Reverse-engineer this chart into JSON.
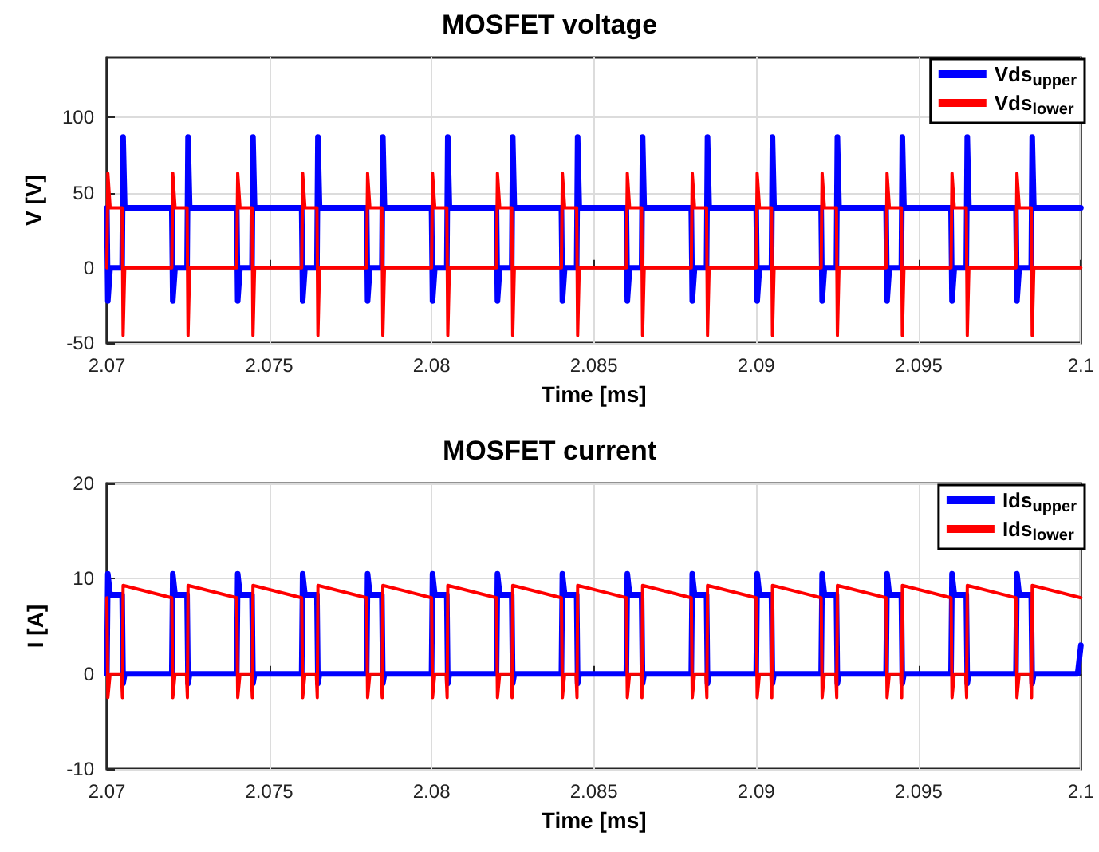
{
  "chart_data": [
    {
      "type": "line",
      "title": "MOSFET voltage",
      "xlabel": "Time [ms]",
      "ylabel": "V [V]",
      "xlim": [
        2.07,
        2.1
      ],
      "xticks": [
        2.07,
        2.075,
        2.08,
        2.085,
        2.09,
        2.095,
        2.1
      ],
      "ylim": [
        -50,
        140
      ],
      "yticks": [
        -50,
        0,
        50,
        100
      ],
      "grid": true,
      "legend": "top right",
      "marker": "none",
      "line_style": "solid",
      "series": [
        {
          "name": "Vds$_{upper}$",
          "color": "#0000ff",
          "x": [
            2.07,
            2.07003,
            2.0701,
            2.07047,
            2.0705,
            2.07055,
            2.072,
            2.07203,
            2.0721,
            2.07247,
            2.0725,
            2.07255,
            2.074,
            2.07403,
            2.0741,
            2.07447,
            2.0745,
            2.07455,
            2.076,
            2.07603,
            2.0761,
            2.07647,
            2.0765,
            2.07655,
            2.078,
            2.07803,
            2.0781,
            2.07847,
            2.0785,
            2.07855,
            2.08,
            2.08003,
            2.0801,
            2.08047,
            2.0805,
            2.08055,
            2.082,
            2.08203,
            2.0821,
            2.08247,
            2.0825,
            2.08255,
            2.084,
            2.08403,
            2.0841,
            2.08447,
            2.0845,
            2.08455,
            2.086,
            2.08603,
            2.0861,
            2.08647,
            2.0865,
            2.08655,
            2.088,
            2.08803,
            2.0881,
            2.08847,
            2.0885,
            2.08855,
            2.09,
            2.09003,
            2.0901,
            2.09047,
            2.0905,
            2.09055,
            2.092,
            2.09203,
            2.0921,
            2.09247,
            2.0925,
            2.09255,
            2.094,
            2.09403,
            2.0941,
            2.09447,
            2.0945,
            2.09455,
            2.096,
            2.09603,
            2.0961,
            2.09647,
            2.0965,
            2.09655,
            2.098,
            2.09803,
            2.0981,
            2.09847,
            2.0985,
            2.09855,
            2.1
          ],
          "values": [
            40,
            -22,
            0,
            0,
            87,
            40,
            40,
            -22,
            0,
            0,
            87,
            40,
            40,
            -22,
            0,
            0,
            87,
            40,
            40,
            -22,
            0,
            0,
            87,
            40,
            40,
            -22,
            0,
            0,
            87,
            40,
            40,
            -22,
            0,
            0,
            87,
            40,
            40,
            -22,
            0,
            0,
            87,
            40,
            40,
            -22,
            0,
            0,
            87,
            40,
            40,
            -22,
            0,
            0,
            87,
            40,
            40,
            -22,
            0,
            0,
            87,
            40,
            40,
            -22,
            0,
            0,
            87,
            40,
            40,
            -22,
            0,
            0,
            87,
            40,
            40,
            -22,
            0,
            0,
            87,
            40,
            40,
            -22,
            0,
            0,
            87,
            40,
            40,
            -22,
            0,
            0,
            87,
            40,
            40
          ]
        },
        {
          "name": "Vds$_{lower}$",
          "color": "#ff0000",
          "x": [
            2.07,
            2.07003,
            2.0701,
            2.07047,
            2.0705,
            2.07055,
            2.072,
            2.07203,
            2.0721,
            2.07247,
            2.0725,
            2.07255,
            2.074,
            2.07403,
            2.0741,
            2.07447,
            2.0745,
            2.07455,
            2.076,
            2.07603,
            2.0761,
            2.07647,
            2.0765,
            2.07655,
            2.078,
            2.07803,
            2.0781,
            2.07847,
            2.0785,
            2.07855,
            2.08,
            2.08003,
            2.0801,
            2.08047,
            2.0805,
            2.08055,
            2.082,
            2.08203,
            2.0821,
            2.08247,
            2.0825,
            2.08255,
            2.084,
            2.08403,
            2.0841,
            2.08447,
            2.0845,
            2.08455,
            2.086,
            2.08603,
            2.0861,
            2.08647,
            2.0865,
            2.08655,
            2.088,
            2.08803,
            2.0881,
            2.08847,
            2.0885,
            2.08855,
            2.09,
            2.09003,
            2.0901,
            2.09047,
            2.0905,
            2.09055,
            2.092,
            2.09203,
            2.0921,
            2.09247,
            2.0925,
            2.09255,
            2.094,
            2.09403,
            2.0941,
            2.09447,
            2.0945,
            2.09455,
            2.096,
            2.09603,
            2.0961,
            2.09647,
            2.0965,
            2.09655,
            2.098,
            2.09803,
            2.0981,
            2.09847,
            2.0985,
            2.09855,
            2.1
          ],
          "values": [
            0,
            63,
            40,
            40,
            -45,
            0,
            0,
            63,
            40,
            40,
            -45,
            0,
            0,
            63,
            40,
            40,
            -45,
            0,
            0,
            63,
            40,
            40,
            -45,
            0,
            0,
            63,
            40,
            40,
            -45,
            0,
            0,
            63,
            40,
            40,
            -45,
            0,
            0,
            63,
            40,
            40,
            -45,
            0,
            0,
            63,
            40,
            40,
            -45,
            0,
            0,
            63,
            40,
            40,
            -45,
            0,
            0,
            63,
            40,
            40,
            -45,
            0,
            0,
            63,
            40,
            40,
            -45,
            0,
            0,
            63,
            40,
            40,
            -45,
            0,
            0,
            63,
            40,
            40,
            -45,
            0,
            0,
            63,
            40,
            40,
            -45,
            0,
            0,
            63,
            40,
            40,
            -45,
            0,
            0
          ]
        }
      ]
    },
    {
      "type": "line",
      "title": "MOSFET current",
      "xlabel": "Time [ms]",
      "ylabel": "I [A]",
      "xlim": [
        2.07,
        2.1
      ],
      "xticks": [
        2.07,
        2.075,
        2.08,
        2.085,
        2.09,
        2.095,
        2.1
      ],
      "ylim": [
        -10,
        20
      ],
      "yticks": [
        -10,
        0,
        10,
        20
      ],
      "grid": true,
      "legend": "top right",
      "marker": "none",
      "line_style": "solid",
      "series": [
        {
          "name": "Ids$_{upper}$",
          "color": "#0000ff",
          "x": [
            2.07,
            2.07003,
            2.0701,
            2.07047,
            2.0705,
            2.07055,
            2.072,
            2.07203,
            2.0721,
            2.07247,
            2.0725,
            2.07255,
            2.074,
            2.07403,
            2.0741,
            2.07447,
            2.0745,
            2.07455,
            2.076,
            2.07603,
            2.0761,
            2.07647,
            2.0765,
            2.07655,
            2.078,
            2.07803,
            2.0781,
            2.07847,
            2.0785,
            2.07855,
            2.08,
            2.08003,
            2.0801,
            2.08047,
            2.0805,
            2.08055,
            2.082,
            2.08203,
            2.0821,
            2.08247,
            2.0825,
            2.08255,
            2.084,
            2.08403,
            2.0841,
            2.08447,
            2.0845,
            2.08455,
            2.086,
            2.08603,
            2.0861,
            2.08647,
            2.0865,
            2.08655,
            2.088,
            2.08803,
            2.0881,
            2.08847,
            2.0885,
            2.08855,
            2.09,
            2.09003,
            2.0901,
            2.09047,
            2.0905,
            2.09055,
            2.092,
            2.09203,
            2.0921,
            2.09247,
            2.0925,
            2.09255,
            2.094,
            2.09403,
            2.0941,
            2.09447,
            2.0945,
            2.09455,
            2.096,
            2.09603,
            2.0961,
            2.09647,
            2.0965,
            2.09655,
            2.098,
            2.09803,
            2.0981,
            2.09847,
            2.0985,
            2.09855,
            2.0999,
            2.1
          ],
          "values": [
            0,
            10.5,
            8.3,
            8.3,
            -1,
            0,
            0,
            10.5,
            8.3,
            8.3,
            -1,
            0,
            0,
            10.5,
            8.3,
            8.3,
            -1,
            0,
            0,
            10.5,
            8.3,
            8.3,
            -1,
            0,
            0,
            10.5,
            8.3,
            8.3,
            -1,
            0,
            0,
            10.5,
            8.3,
            8.3,
            -1,
            0,
            0,
            10.5,
            8.3,
            8.3,
            -1,
            0,
            0,
            10.5,
            8.3,
            8.3,
            -1,
            0,
            0,
            10.5,
            8.3,
            8.3,
            -1,
            0,
            0,
            10.5,
            8.3,
            8.3,
            -1,
            0,
            0,
            10.5,
            8.3,
            8.3,
            -1,
            0,
            0,
            10.5,
            8.3,
            8.3,
            -1,
            0,
            0,
            10.5,
            8.3,
            8.3,
            -1,
            0,
            0,
            10.5,
            8.3,
            8.3,
            -1,
            0,
            0,
            10.5,
            8.3,
            8.3,
            -1,
            0,
            0,
            3
          ]
        },
        {
          "name": "Ids$_{lower}$",
          "color": "#ff0000",
          "x": [
            2.07,
            2.07003,
            2.0701,
            2.07045,
            2.07048,
            2.0705,
            2.072,
            2.07203,
            2.0721,
            2.07245,
            2.07248,
            2.0725,
            2.074,
            2.07403,
            2.0741,
            2.07445,
            2.07448,
            2.0745,
            2.076,
            2.07603,
            2.0761,
            2.07645,
            2.07648,
            2.0765,
            2.078,
            2.07803,
            2.0781,
            2.07845,
            2.07848,
            2.0785,
            2.08,
            2.08003,
            2.0801,
            2.08045,
            2.08048,
            2.0805,
            2.082,
            2.08203,
            2.0821,
            2.08245,
            2.08248,
            2.0825,
            2.084,
            2.08403,
            2.0841,
            2.08445,
            2.08448,
            2.0845,
            2.086,
            2.08603,
            2.0861,
            2.08645,
            2.08648,
            2.0865,
            2.088,
            2.08803,
            2.0881,
            2.08845,
            2.08848,
            2.0885,
            2.09,
            2.09003,
            2.0901,
            2.09045,
            2.09048,
            2.0905,
            2.092,
            2.09203,
            2.0921,
            2.09245,
            2.09248,
            2.0925,
            2.094,
            2.09403,
            2.0941,
            2.09445,
            2.09448,
            2.0945,
            2.096,
            2.09603,
            2.0961,
            2.09645,
            2.09648,
            2.0965,
            2.098,
            2.09803,
            2.0981,
            2.09845,
            2.09848,
            2.0985,
            2.1
          ],
          "values": [
            8,
            -2.5,
            0,
            0,
            -2.5,
            9.3,
            8,
            -2.5,
            0,
            0,
            -2.5,
            9.3,
            8,
            -2.5,
            0,
            0,
            -2.5,
            9.3,
            8,
            -2.5,
            0,
            0,
            -2.5,
            9.3,
            8,
            -2.5,
            0,
            0,
            -2.5,
            9.3,
            8,
            -2.5,
            0,
            0,
            -2.5,
            9.3,
            8,
            -2.5,
            0,
            0,
            -2.5,
            9.3,
            8,
            -2.5,
            0,
            0,
            -2.5,
            9.3,
            8,
            -2.5,
            0,
            0,
            -2.5,
            9.3,
            8,
            -2.5,
            0,
            0,
            -2.5,
            9.3,
            8,
            -2.5,
            0,
            0,
            -2.5,
            9.3,
            8,
            -2.5,
            0,
            0,
            -2.5,
            9.3,
            8,
            -2.5,
            0,
            0,
            -2.5,
            9.3,
            8,
            -2.5,
            0,
            0,
            -2.5,
            9.3,
            8,
            -2.5,
            0,
            0,
            -2.5,
            9.3,
            8
          ]
        }
      ]
    }
  ]
}
